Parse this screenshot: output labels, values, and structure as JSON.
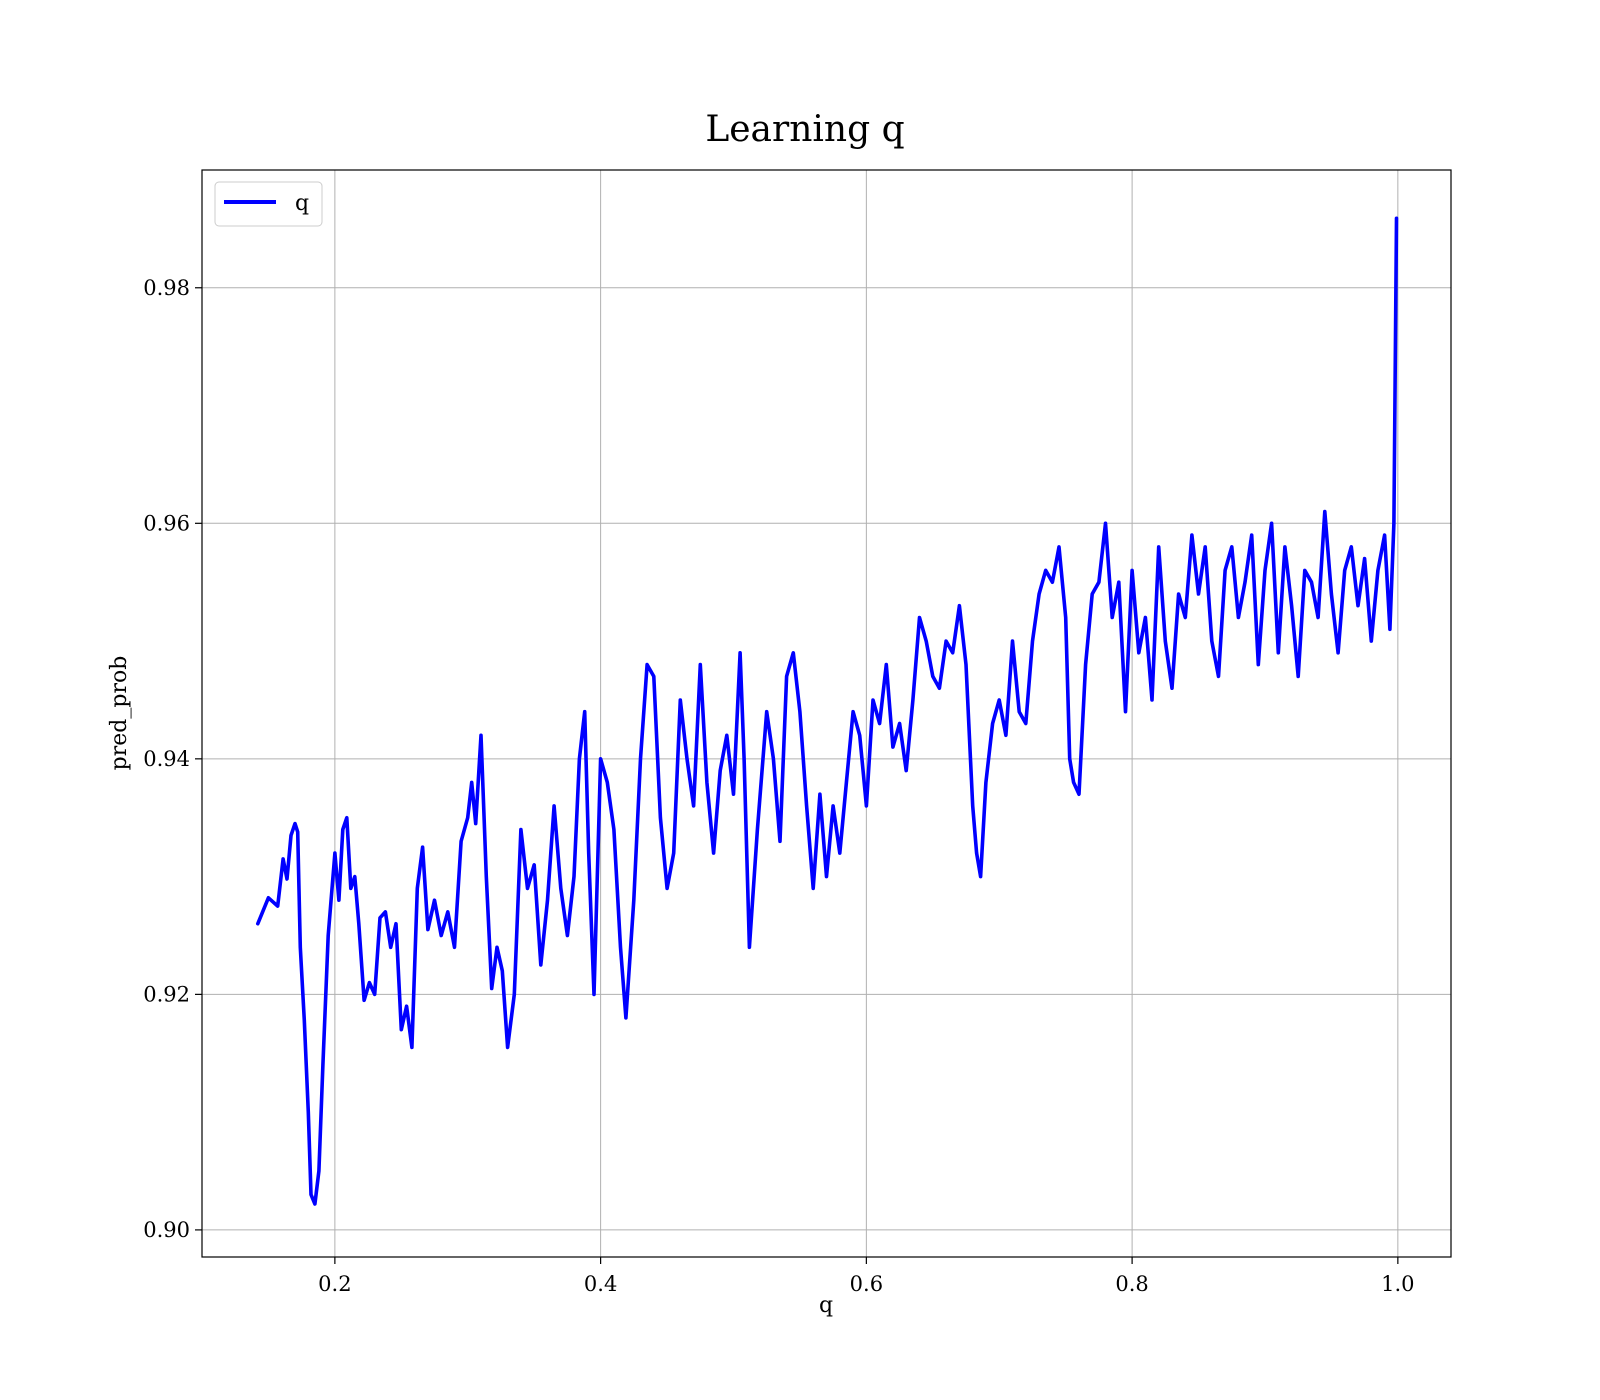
{
  "chart_data": {
    "type": "line",
    "title": "Learning q",
    "xlabel": "q",
    "ylabel": "pred_prob",
    "xlim": [
      0.1,
      1.04
    ],
    "ylim": [
      0.8977,
      0.99
    ],
    "grid": true,
    "legend_placement": "top-left",
    "x_ticks": [
      {
        "value": 0.2,
        "label": "0.2"
      },
      {
        "value": 0.4,
        "label": "0.4"
      },
      {
        "value": 0.6,
        "label": "0.6"
      },
      {
        "value": 0.8,
        "label": "0.8"
      },
      {
        "value": 1.0,
        "label": "1.0"
      }
    ],
    "y_ticks": [
      {
        "value": 0.9,
        "label": "0.90"
      },
      {
        "value": 0.92,
        "label": "0.92"
      },
      {
        "value": 0.94,
        "label": "0.94"
      },
      {
        "value": 0.96,
        "label": "0.96"
      },
      {
        "value": 0.98,
        "label": "0.98"
      }
    ],
    "series": [
      {
        "name": "q",
        "color": "#0000ff",
        "x": [
          0.142,
          0.15,
          0.157,
          0.161,
          0.164,
          0.167,
          0.17,
          0.172,
          0.174,
          0.177,
          0.18,
          0.182,
          0.185,
          0.188,
          0.191,
          0.195,
          0.2,
          0.203,
          0.206,
          0.209,
          0.212,
          0.215,
          0.218,
          0.222,
          0.226,
          0.23,
          0.234,
          0.238,
          0.242,
          0.246,
          0.25,
          0.254,
          0.258,
          0.262,
          0.266,
          0.27,
          0.275,
          0.28,
          0.285,
          0.29,
          0.295,
          0.3,
          0.303,
          0.306,
          0.31,
          0.314,
          0.318,
          0.322,
          0.326,
          0.33,
          0.335,
          0.34,
          0.345,
          0.35,
          0.355,
          0.36,
          0.365,
          0.37,
          0.375,
          0.38,
          0.384,
          0.388,
          0.391,
          0.395,
          0.4,
          0.405,
          0.41,
          0.415,
          0.419,
          0.425,
          0.43,
          0.435,
          0.44,
          0.445,
          0.45,
          0.455,
          0.46,
          0.465,
          0.47,
          0.475,
          0.48,
          0.485,
          0.49,
          0.495,
          0.5,
          0.505,
          0.508,
          0.512,
          0.518,
          0.525,
          0.53,
          0.535,
          0.54,
          0.545,
          0.55,
          0.555,
          0.56,
          0.565,
          0.57,
          0.575,
          0.58,
          0.585,
          0.59,
          0.595,
          0.6,
          0.605,
          0.61,
          0.615,
          0.62,
          0.625,
          0.63,
          0.635,
          0.64,
          0.645,
          0.65,
          0.655,
          0.66,
          0.665,
          0.67,
          0.675,
          0.68,
          0.683,
          0.686,
          0.69,
          0.695,
          0.7,
          0.705,
          0.71,
          0.715,
          0.72,
          0.725,
          0.73,
          0.735,
          0.74,
          0.745,
          0.75,
          0.753,
          0.756,
          0.76,
          0.765,
          0.77,
          0.775,
          0.78,
          0.785,
          0.79,
          0.795,
          0.8,
          0.805,
          0.81,
          0.815,
          0.82,
          0.825,
          0.83,
          0.835,
          0.84,
          0.845,
          0.85,
          0.855,
          0.86,
          0.865,
          0.87,
          0.875,
          0.88,
          0.885,
          0.89,
          0.895,
          0.9,
          0.905,
          0.91,
          0.915,
          0.92,
          0.925,
          0.93,
          0.935,
          0.94,
          0.945,
          0.95,
          0.955,
          0.96,
          0.965,
          0.97,
          0.975,
          0.98,
          0.985,
          0.99,
          0.994,
          0.997,
          0.999
        ],
        "y": [
          0.926,
          0.9282,
          0.9275,
          0.9315,
          0.9298,
          0.9335,
          0.9345,
          0.9338,
          0.924,
          0.9178,
          0.91,
          0.903,
          0.9022,
          0.905,
          0.914,
          0.925,
          0.932,
          0.928,
          0.934,
          0.935,
          0.929,
          0.93,
          0.926,
          0.9195,
          0.921,
          0.92,
          0.9265,
          0.927,
          0.924,
          0.926,
          0.917,
          0.919,
          0.9155,
          0.929,
          0.9325,
          0.9255,
          0.928,
          0.925,
          0.927,
          0.924,
          0.933,
          0.935,
          0.938,
          0.9345,
          0.942,
          0.93,
          0.9205,
          0.924,
          0.922,
          0.9155,
          0.92,
          0.934,
          0.929,
          0.931,
          0.9225,
          0.928,
          0.936,
          0.929,
          0.925,
          0.93,
          0.94,
          0.944,
          0.932,
          0.92,
          0.94,
          0.938,
          0.934,
          0.924,
          0.918,
          0.928,
          0.94,
          0.948,
          0.947,
          0.935,
          0.929,
          0.932,
          0.945,
          0.94,
          0.936,
          0.948,
          0.938,
          0.932,
          0.939,
          0.942,
          0.937,
          0.949,
          0.94,
          0.924,
          0.934,
          0.944,
          0.94,
          0.933,
          0.947,
          0.949,
          0.944,
          0.936,
          0.929,
          0.937,
          0.93,
          0.936,
          0.932,
          0.938,
          0.944,
          0.942,
          0.936,
          0.945,
          0.943,
          0.948,
          0.941,
          0.943,
          0.939,
          0.945,
          0.952,
          0.95,
          0.947,
          0.946,
          0.95,
          0.949,
          0.953,
          0.948,
          0.936,
          0.932,
          0.93,
          0.938,
          0.943,
          0.945,
          0.942,
          0.95,
          0.944,
          0.943,
          0.95,
          0.954,
          0.956,
          0.955,
          0.958,
          0.952,
          0.94,
          0.938,
          0.937,
          0.948,
          0.954,
          0.955,
          0.96,
          0.952,
          0.955,
          0.944,
          0.956,
          0.949,
          0.952,
          0.945,
          0.958,
          0.95,
          0.946,
          0.954,
          0.952,
          0.959,
          0.954,
          0.958,
          0.95,
          0.947,
          0.956,
          0.958,
          0.952,
          0.955,
          0.959,
          0.948,
          0.956,
          0.96,
          0.949,
          0.958,
          0.953,
          0.947,
          0.956,
          0.955,
          0.952,
          0.961,
          0.954,
          0.949,
          0.956,
          0.958,
          0.953,
          0.957,
          0.95,
          0.956,
          0.959,
          0.951,
          0.96,
          0.9859
        ]
      }
    ]
  }
}
